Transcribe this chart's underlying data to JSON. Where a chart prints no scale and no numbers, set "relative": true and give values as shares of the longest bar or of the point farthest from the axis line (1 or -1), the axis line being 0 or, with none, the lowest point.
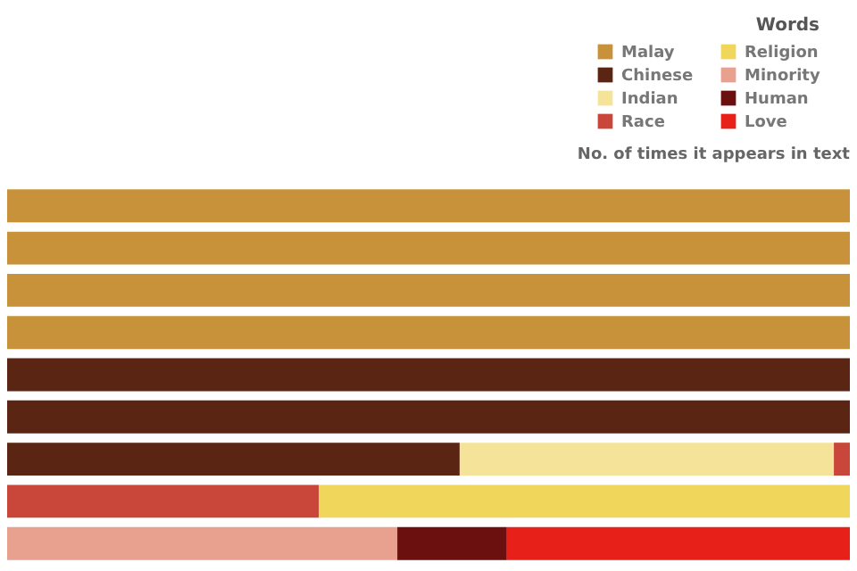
{
  "chart_data": {
    "type": "bar",
    "orientation": "horizontal",
    "stacked": true,
    "relative": true,
    "legend_title": "Words",
    "subtitle": "No. of times it appears in text",
    "legend": "top right",
    "categories": [
      null,
      null,
      null,
      null,
      null,
      null,
      null,
      null,
      null
    ],
    "series": [
      {
        "name": "Malay",
        "color": "#c8923a",
        "values": [
          1,
          1,
          1,
          1,
          null,
          null,
          null,
          null,
          null
        ]
      },
      {
        "name": "Chinese",
        "color": "#5a2512",
        "values": [
          null,
          null,
          null,
          null,
          1,
          1,
          0.537,
          null,
          null
        ]
      },
      {
        "name": "Indian",
        "color": "#f5e39a",
        "values": [
          null,
          null,
          null,
          null,
          null,
          null,
          0.444,
          null,
          null
        ]
      },
      {
        "name": "Race",
        "color": "#c9473a",
        "values": [
          null,
          null,
          null,
          null,
          null,
          null,
          0.019,
          0.37,
          null
        ]
      },
      {
        "name": "Religion",
        "color": "#f0d65a",
        "values": [
          null,
          null,
          null,
          null,
          null,
          null,
          null,
          0.63,
          null
        ]
      },
      {
        "name": "Minority",
        "color": "#e8a08f",
        "values": [
          null,
          null,
          null,
          null,
          null,
          null,
          null,
          null,
          0.463
        ]
      },
      {
        "name": "Human",
        "color": "#6b0f0f",
        "values": [
          null,
          null,
          null,
          null,
          null,
          null,
          null,
          null,
          0.13
        ]
      },
      {
        "name": "Love",
        "color": "#e8201a",
        "values": [
          null,
          null,
          null,
          null,
          null,
          null,
          null,
          null,
          0.407
        ]
      }
    ]
  }
}
